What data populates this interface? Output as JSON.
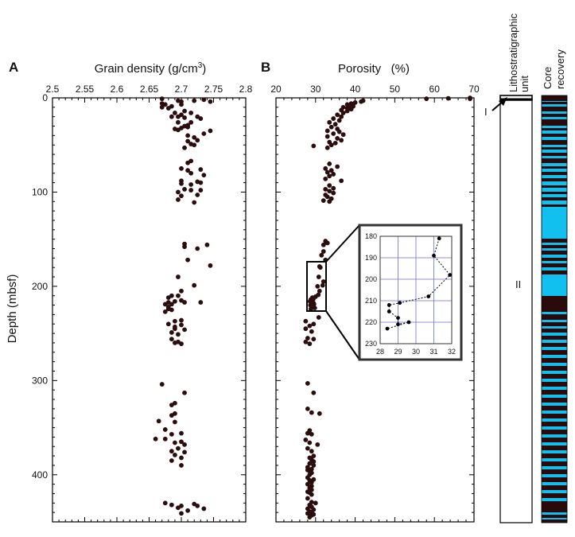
{
  "chart_data": [
    {
      "type": "scatter",
      "panel": "A",
      "xlabel": "Grain density (g/cm",
      "xlabel_sup": "3",
      "xlabel_end": ")",
      "ylabel": "Depth (mbsf)",
      "xlim": [
        2.5,
        2.8
      ],
      "ylim": [
        0,
        450
      ],
      "y_inverted": true,
      "x_ticks": [
        "2.5",
        "2.55",
        "2.6",
        "2.65",
        "2.7",
        "2.75",
        "2.8"
      ],
      "y_ticks": [
        "0",
        "100",
        "200",
        "300",
        "400"
      ],
      "points": [
        [
          2.67,
          1
        ],
        [
          2.735,
          2
        ],
        [
          2.695,
          3
        ],
        [
          2.72,
          3
        ],
        [
          2.745,
          4
        ],
        [
          2.7,
          4
        ],
        [
          2.67,
          6
        ],
        [
          2.675,
          7
        ],
        [
          2.7,
          7
        ],
        [
          2.685,
          9
        ],
        [
          2.67,
          10
        ],
        [
          2.68,
          11
        ],
        [
          2.705,
          14
        ],
        [
          2.69,
          16
        ],
        [
          2.715,
          16
        ],
        [
          2.7,
          18
        ],
        [
          2.685,
          20
        ],
        [
          2.695,
          20
        ],
        [
          2.725,
          20
        ],
        [
          2.705,
          21
        ],
        [
          2.73,
          22
        ],
        [
          2.695,
          26
        ],
        [
          2.715,
          26
        ],
        [
          2.71,
          29
        ],
        [
          2.705,
          30
        ],
        [
          2.71,
          31
        ],
        [
          2.7,
          32
        ],
        [
          2.69,
          33
        ],
        [
          2.695,
          34
        ],
        [
          2.745,
          35
        ],
        [
          2.735,
          38
        ],
        [
          2.71,
          40
        ],
        [
          2.72,
          42
        ],
        [
          2.725,
          45
        ],
        [
          2.71,
          46
        ],
        [
          2.715,
          49
        ],
        [
          2.72,
          50
        ],
        [
          2.705,
          53
        ],
        [
          2.715,
          67
        ],
        [
          2.71,
          69
        ],
        [
          2.7,
          75
        ],
        [
          2.73,
          76
        ],
        [
          2.71,
          77
        ],
        [
          2.715,
          80
        ],
        [
          2.735,
          82
        ],
        [
          2.7,
          88
        ],
        [
          2.725,
          89
        ],
        [
          2.73,
          90
        ],
        [
          2.7,
          91
        ],
        [
          2.715,
          92
        ],
        [
          2.705,
          97
        ],
        [
          2.715,
          98
        ],
        [
          2.73,
          98
        ],
        [
          2.695,
          100
        ],
        [
          2.725,
          103
        ],
        [
          2.7,
          104
        ],
        [
          2.695,
          108
        ],
        [
          2.72,
          111
        ],
        [
          2.705,
          155
        ],
        [
          2.74,
          156
        ],
        [
          2.705,
          158
        ],
        [
          2.725,
          160
        ],
        [
          2.71,
          172
        ],
        [
          2.745,
          178
        ],
        [
          2.695,
          190
        ],
        [
          2.72,
          199
        ],
        [
          2.7,
          205
        ],
        [
          2.685,
          210
        ],
        [
          2.695,
          210
        ],
        [
          2.68,
          212
        ],
        [
          2.7,
          215
        ],
        [
          2.69,
          216
        ],
        [
          2.68,
          217
        ],
        [
          2.705,
          217
        ],
        [
          2.73,
          217
        ],
        [
          2.675,
          219
        ],
        [
          2.685,
          219
        ],
        [
          2.68,
          222
        ],
        [
          2.68,
          224
        ],
        [
          2.685,
          225
        ],
        [
          2.675,
          227
        ],
        [
          2.7,
          236
        ],
        [
          2.69,
          237
        ],
        [
          2.68,
          240
        ],
        [
          2.7,
          241
        ],
        [
          2.69,
          243
        ],
        [
          2.69,
          245
        ],
        [
          2.705,
          246
        ],
        [
          2.685,
          249
        ],
        [
          2.695,
          251
        ],
        [
          2.685,
          256
        ],
        [
          2.695,
          259
        ],
        [
          2.69,
          260
        ],
        [
          2.7,
          261
        ],
        [
          2.67,
          304
        ],
        [
          2.705,
          313
        ],
        [
          2.69,
          324
        ],
        [
          2.685,
          326
        ],
        [
          2.69,
          335
        ],
        [
          2.685,
          337
        ],
        [
          2.665,
          343
        ],
        [
          2.69,
          344
        ],
        [
          2.675,
          352
        ],
        [
          2.7,
          356
        ],
        [
          2.685,
          357
        ],
        [
          2.66,
          362
        ],
        [
          2.675,
          362
        ],
        [
          2.7,
          365
        ],
        [
          2.69,
          366
        ],
        [
          2.705,
          368
        ],
        [
          2.695,
          372
        ],
        [
          2.685,
          375
        ],
        [
          2.705,
          376
        ],
        [
          2.69,
          379
        ],
        [
          2.7,
          382
        ],
        [
          2.685,
          385
        ],
        [
          2.7,
          390
        ],
        [
          2.675,
          430
        ],
        [
          2.72,
          431
        ],
        [
          2.685,
          432
        ],
        [
          2.7,
          433
        ],
        [
          2.725,
          433
        ],
        [
          2.695,
          435
        ],
        [
          2.735,
          436
        ],
        [
          2.71,
          438
        ],
        [
          2.7,
          441
        ]
      ]
    },
    {
      "type": "scatter",
      "panel": "B",
      "xlabel": "Porosity   (%)",
      "xlim": [
        20,
        70
      ],
      "ylim": [
        0,
        450
      ],
      "y_inverted": true,
      "x_ticks": [
        "20",
        "30",
        "40",
        "50",
        "60",
        "70"
      ],
      "points": [
        [
          69,
          0
        ],
        [
          63.5,
          0.5
        ],
        [
          58,
          1
        ],
        [
          69,
          1
        ],
        [
          42,
          3
        ],
        [
          41.5,
          4
        ],
        [
          40,
          5
        ],
        [
          39,
          6
        ],
        [
          38,
          7
        ],
        [
          38.5,
          8
        ],
        [
          39.5,
          9
        ],
        [
          37,
          10
        ],
        [
          38,
          11
        ],
        [
          39,
          12
        ],
        [
          36.5,
          13
        ],
        [
          38,
          14
        ],
        [
          37,
          16
        ],
        [
          35.5,
          18
        ],
        [
          36.5,
          20
        ],
        [
          34.5,
          22
        ],
        [
          36,
          24
        ],
        [
          33.5,
          26
        ],
        [
          35,
          28
        ],
        [
          34,
          31
        ],
        [
          35.5,
          33
        ],
        [
          33,
          35
        ],
        [
          36,
          36
        ],
        [
          34.5,
          38
        ],
        [
          37,
          39
        ],
        [
          33,
          41
        ],
        [
          35.5,
          43
        ],
        [
          36.5,
          45
        ],
        [
          33.5,
          47
        ],
        [
          35,
          48
        ],
        [
          34,
          50
        ],
        [
          29.5,
          51
        ],
        [
          33,
          53
        ],
        [
          33.5,
          70
        ],
        [
          35.5,
          73
        ],
        [
          32.5,
          75
        ],
        [
          34,
          77
        ],
        [
          33,
          79
        ],
        [
          34.5,
          81
        ],
        [
          33.5,
          83
        ],
        [
          32.5,
          86
        ],
        [
          36.5,
          88
        ],
        [
          33.5,
          93
        ],
        [
          34.5,
          96
        ],
        [
          32.5,
          97
        ],
        [
          33.5,
          99
        ],
        [
          34.5,
          101
        ],
        [
          32.5,
          103
        ],
        [
          33,
          105
        ],
        [
          34,
          107
        ],
        [
          32,
          109
        ],
        [
          33.5,
          110
        ],
        [
          32.5,
          152
        ],
        [
          33,
          154
        ],
        [
          32,
          156
        ],
        [
          32,
          163
        ],
        [
          31.5,
          167
        ],
        [
          32.5,
          172
        ],
        [
          31,
          179
        ],
        [
          31.2,
          180
        ],
        [
          30.8,
          190
        ],
        [
          31.8,
          199
        ],
        [
          32,
          195
        ],
        [
          30.5,
          200
        ],
        [
          31,
          205
        ],
        [
          30.7,
          209
        ],
        [
          29.2,
          212
        ],
        [
          30,
          211
        ],
        [
          28.8,
          214
        ],
        [
          29.4,
          214
        ],
        [
          28.6,
          216
        ],
        [
          29.5,
          218
        ],
        [
          29,
          219
        ],
        [
          29.6,
          219
        ],
        [
          28.7,
          220
        ],
        [
          29.2,
          221
        ],
        [
          29.8,
          223
        ],
        [
          28.8,
          224
        ],
        [
          30.8,
          233
        ],
        [
          27.5,
          237
        ],
        [
          29.5,
          240
        ],
        [
          28.5,
          242
        ],
        [
          27.5,
          245
        ],
        [
          29,
          248
        ],
        [
          28,
          255
        ],
        [
          29.5,
          256
        ],
        [
          27.5,
          259
        ],
        [
          28.5,
          261
        ],
        [
          28,
          303
        ],
        [
          29.5,
          313
        ],
        [
          28,
          330
        ],
        [
          29,
          334
        ],
        [
          31,
          335
        ],
        [
          28.5,
          353
        ],
        [
          28,
          356
        ],
        [
          29,
          357
        ],
        [
          27.5,
          363
        ],
        [
          28.5,
          366
        ],
        [
          30.5,
          368
        ],
        [
          28,
          372
        ],
        [
          29,
          375
        ],
        [
          29.5,
          380
        ],
        [
          28.5,
          382
        ],
        [
          29,
          384
        ],
        [
          29.5,
          386
        ],
        [
          28.5,
          388
        ],
        [
          29.5,
          390
        ],
        [
          28,
          392
        ],
        [
          29,
          394
        ],
        [
          28,
          395
        ],
        [
          28.5,
          396
        ],
        [
          29,
          398
        ],
        [
          28.5,
          400
        ],
        [
          28,
          403
        ],
        [
          29.5,
          405
        ],
        [
          28.5,
          406
        ],
        [
          29,
          408
        ],
        [
          28,
          410
        ],
        [
          29,
          412
        ],
        [
          28.5,
          414
        ],
        [
          29,
          416
        ],
        [
          28,
          418
        ],
        [
          28.5,
          419
        ],
        [
          29,
          421
        ],
        [
          28,
          425
        ],
        [
          29,
          429
        ],
        [
          30,
          430
        ],
        [
          28.5,
          432
        ],
        [
          29,
          434
        ],
        [
          28,
          436
        ],
        [
          29.5,
          437
        ],
        [
          28.5,
          439
        ],
        [
          29,
          440
        ],
        [
          28,
          441
        ],
        [
          29.5,
          442
        ],
        [
          29,
          443
        ],
        [
          28.5,
          445
        ]
      ]
    },
    {
      "type": "line",
      "panel": "B-inset",
      "xlim": [
        28,
        32
      ],
      "ylim": [
        180,
        230
      ],
      "y_inverted": true,
      "x_ticks": [
        "28",
        "29",
        "30",
        "31",
        "32"
      ],
      "y_ticks": [
        "180",
        "190",
        "200",
        "210",
        "220",
        "230"
      ],
      "points": [
        [
          31.3,
          181
        ],
        [
          31.0,
          189
        ],
        [
          31.9,
          198
        ],
        [
          30.7,
          208
        ],
        [
          29.1,
          211
        ],
        [
          28.5,
          212
        ],
        [
          28.5,
          215
        ],
        [
          29.0,
          218
        ],
        [
          29.0,
          221
        ],
        [
          29.6,
          220
        ],
        [
          28.4,
          223
        ]
      ]
    }
  ],
  "units_column": {
    "title": "Lithostratigraphic unit",
    "title_line1": "Lithostratigraphic",
    "title_line2": "unit",
    "unit_i": "I",
    "unit_ii": "II"
  },
  "core_recovery": {
    "title_line1": "Core",
    "title_line2": "recovery",
    "colors": {
      "recovered": "#2a0a0a",
      "gap": "#12c0f0"
    }
  },
  "colors": {
    "point": "#2b0d0d",
    "axis": "#000000",
    "inset_grid": "#6f6fd6"
  }
}
